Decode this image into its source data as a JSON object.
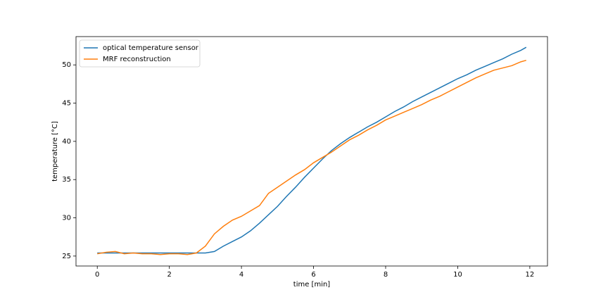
{
  "chart_data": {
    "type": "line",
    "xlabel": "time [min]",
    "ylabel": "temperature [°C]",
    "x": [
      0,
      0.25,
      0.5,
      0.75,
      1,
      1.25,
      1.5,
      1.75,
      2,
      2.25,
      2.5,
      2.75,
      3,
      3.25,
      3.5,
      3.75,
      4,
      4.25,
      4.5,
      4.75,
      5,
      5.25,
      5.5,
      5.75,
      6,
      6.25,
      6.5,
      6.75,
      7,
      7.25,
      7.5,
      7.75,
      8,
      8.25,
      8.5,
      8.75,
      9,
      9.25,
      9.5,
      9.75,
      10,
      10.25,
      10.5,
      10.75,
      11,
      11.25,
      11.5,
      11.75,
      11.9
    ],
    "series": [
      {
        "name": "optical temperature sensor",
        "color": "#1f77b4",
        "values": [
          25.4,
          25.4,
          25.4,
          25.4,
          25.4,
          25.4,
          25.4,
          25.4,
          25.4,
          25.4,
          25.4,
          25.4,
          25.4,
          25.6,
          26.3,
          26.9,
          27.5,
          28.3,
          29.3,
          30.4,
          31.5,
          32.8,
          34,
          35.3,
          36.5,
          37.7,
          38.8,
          39.7,
          40.5,
          41.2,
          41.9,
          42.5,
          43.2,
          43.9,
          44.5,
          45.2,
          45.8,
          46.4,
          47,
          47.6,
          48.2,
          48.7,
          49.3,
          49.8,
          50.3,
          50.8,
          51.4,
          51.9,
          52.3
        ]
      },
      {
        "name": "MRF reconstruction",
        "color": "#ff7f0e",
        "values": [
          25.3,
          25.5,
          25.6,
          25.3,
          25.4,
          25.3,
          25.3,
          25.2,
          25.3,
          25.3,
          25.2,
          25.4,
          26.3,
          27.9,
          28.9,
          29.7,
          30.2,
          30.9,
          31.6,
          33.2,
          34.0,
          34.8,
          35.6,
          36.3,
          37.2,
          37.9,
          38.6,
          39.4,
          40.2,
          40.8,
          41.5,
          42.1,
          42.8,
          43.3,
          43.8,
          44.3,
          44.8,
          45.4,
          45.9,
          46.5,
          47.1,
          47.7,
          48.3,
          48.8,
          49.3,
          49.6,
          49.9,
          50.4,
          50.6
        ]
      }
    ],
    "xlim": [
      -0.59,
      12.49
    ],
    "xticks": [
      0,
      2,
      4,
      6,
      8,
      10,
      12
    ],
    "ylim": [
      23.7,
      53.7
    ],
    "yticks": [
      25,
      30,
      35,
      40,
      45,
      50
    ],
    "legend": "upper left",
    "grid": false
  }
}
